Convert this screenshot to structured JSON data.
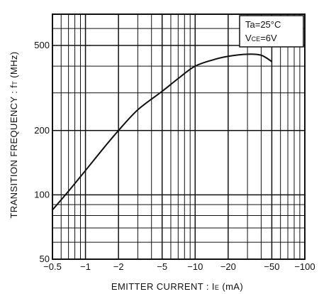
{
  "chart_data": {
    "type": "line",
    "xscale": "log",
    "yscale": "log",
    "xlim": [
      -0.5,
      -100
    ],
    "ylim": [
      50,
      700
    ],
    "grid": true,
    "xticks": [
      "−0.5",
      "−1",
      "−2",
      "−5",
      "−10",
      "−20",
      "−50",
      "−100"
    ],
    "xtick_values": [
      -0.5,
      -1,
      -2,
      -5,
      -10,
      -20,
      -50,
      -100
    ],
    "yticks": [
      "50",
      "100",
      "200",
      "500"
    ],
    "ytick_values": [
      50,
      100,
      200,
      500
    ],
    "xlabel": {
      "main": "EMITTER  CURRENT : I",
      "sub": "E",
      "unit": " (mA)"
    },
    "ylabel": {
      "main": "TRANSITION  FREQUENCY : f",
      "sub": "T",
      "unit": " (MHz)"
    },
    "legend": {
      "placement": "top-right",
      "line1": {
        "main": "Ta=25°C"
      },
      "line2": {
        "main": "V",
        "sub": "CE",
        "unit": "=6V"
      }
    },
    "series": [
      {
        "x": [
          -0.5,
          -0.7,
          -1,
          -1.5,
          -2,
          -3,
          -5,
          -7,
          -10,
          -15,
          -20,
          -30,
          -40,
          -50
        ],
        "y": [
          85,
          104,
          130,
          168,
          200,
          250,
          305,
          350,
          400,
          430,
          445,
          455,
          450,
          420
        ],
        "color": "#111111"
      }
    ]
  }
}
